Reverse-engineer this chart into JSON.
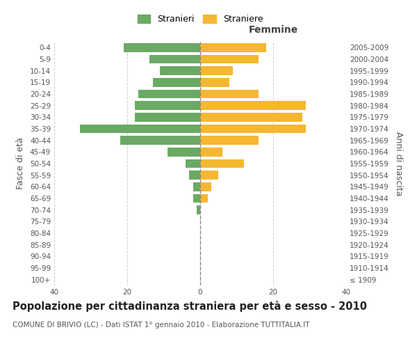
{
  "age_groups": [
    "100+",
    "95-99",
    "90-94",
    "85-89",
    "80-84",
    "75-79",
    "70-74",
    "65-69",
    "60-64",
    "55-59",
    "50-54",
    "45-49",
    "40-44",
    "35-39",
    "30-34",
    "25-29",
    "20-24",
    "15-19",
    "10-14",
    "5-9",
    "0-4"
  ],
  "birth_years": [
    "≤ 1909",
    "1910-1914",
    "1915-1919",
    "1920-1924",
    "1925-1929",
    "1930-1934",
    "1935-1939",
    "1940-1944",
    "1945-1949",
    "1950-1954",
    "1955-1959",
    "1960-1964",
    "1965-1969",
    "1970-1974",
    "1975-1979",
    "1980-1984",
    "1985-1989",
    "1990-1994",
    "1995-1999",
    "2000-2004",
    "2005-2009"
  ],
  "males": [
    0,
    0,
    0,
    0,
    0,
    0,
    1,
    2,
    2,
    3,
    4,
    9,
    22,
    33,
    18,
    18,
    17,
    13,
    11,
    14,
    21
  ],
  "females": [
    0,
    0,
    0,
    0,
    0,
    0,
    0,
    2,
    3,
    5,
    12,
    6,
    16,
    29,
    28,
    29,
    16,
    8,
    9,
    16,
    18
  ],
  "male_color": "#6aaa64",
  "female_color": "#f5b731",
  "center_line_color": "#888888",
  "grid_color": "#cccccc",
  "background_color": "#ffffff",
  "title": "Popolazione per cittadinanza straniera per età e sesso - 2010",
  "subtitle": "COMUNE DI BRIVIO (LC) - Dati ISTAT 1° gennaio 2010 - Elaborazione TUTTITALIA.IT",
  "xlabel_right": "Femmine",
  "ylabel_left": "Fasce di età",
  "ylabel_right": "Anni di nascita",
  "legend_male": "Stranieri",
  "legend_female": "Straniere",
  "xlim": 40,
  "title_fontsize": 10.5,
  "subtitle_fontsize": 7.5,
  "label_fontsize": 9,
  "tick_fontsize": 7.5
}
